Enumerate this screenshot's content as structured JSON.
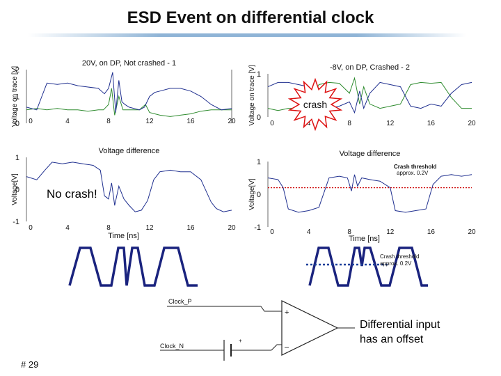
{
  "slide": {
    "title": "ESD Event on differential clock",
    "slide_number": "# 29"
  },
  "colors": {
    "trace_green": "#2e8b2e",
    "trace_blue": "#1f2f8f",
    "threshold_red": "#cc0000",
    "crash_star": "#dd1111",
    "accent_rule": "#8fb4d6"
  },
  "chart_data": [
    {
      "id": "top-left",
      "type": "line",
      "title": "20V, on DP, Not crashed - 1",
      "ylabel": "Voltage on trace [V]",
      "xlabel": "Voltage difference",
      "xlim": [
        0,
        20
      ],
      "ylim": [
        0,
        2
      ],
      "x_ticks": [
        "0",
        "4",
        "8",
        "12",
        "16",
        "20"
      ],
      "y_ticks": [
        "0",
        "1",
        "2"
      ],
      "series": [
        {
          "color": "green",
          "points": [
            [
              0,
              0.5
            ],
            [
              1,
              0.55
            ],
            [
              2,
              0.5
            ],
            [
              3,
              0.55
            ],
            [
              4,
              0.5
            ],
            [
              5,
              0.5
            ],
            [
              6,
              0.45
            ],
            [
              7,
              0.5
            ],
            [
              7.5,
              0.5
            ],
            [
              8,
              0.7
            ],
            [
              8.3,
              1.3
            ],
            [
              8.6,
              0.3
            ],
            [
              9,
              1.0
            ],
            [
              9.4,
              0.5
            ],
            [
              10,
              0.5
            ],
            [
              11,
              0.5
            ],
            [
              11.6,
              0.7
            ],
            [
              12,
              0.4
            ],
            [
              13,
              0.3
            ],
            [
              14,
              0.25
            ],
            [
              15,
              0.3
            ],
            [
              16,
              0.35
            ],
            [
              17,
              0.45
            ],
            [
              18,
              0.5
            ],
            [
              19,
              0.5
            ],
            [
              20,
              0.5
            ]
          ]
        },
        {
          "color": "blue",
          "points": [
            [
              0,
              0.6
            ],
            [
              1,
              0.5
            ],
            [
              1.5,
              1.0
            ],
            [
              2,
              1.5
            ],
            [
              3,
              1.45
            ],
            [
              4,
              1.5
            ],
            [
              5,
              1.4
            ],
            [
              6,
              1.35
            ],
            [
              7,
              1.3
            ],
            [
              7.6,
              1.1
            ],
            [
              8,
              1.3
            ],
            [
              8.4,
              1.9
            ],
            [
              8.7,
              0.4
            ],
            [
              9,
              1.6
            ],
            [
              9.3,
              0.8
            ],
            [
              9.6,
              0.7
            ],
            [
              10,
              0.6
            ],
            [
              11,
              0.5
            ],
            [
              11.5,
              0.6
            ],
            [
              12,
              1.0
            ],
            [
              12.5,
              1.15
            ],
            [
              13,
              1.2
            ],
            [
              14,
              1.3
            ],
            [
              15,
              1.3
            ],
            [
              16,
              1.2
            ],
            [
              17,
              1.0
            ],
            [
              18,
              0.7
            ],
            [
              19,
              0.5
            ],
            [
              20,
              0.55
            ]
          ]
        }
      ]
    },
    {
      "id": "top-right",
      "type": "line",
      "title": "-8V, on DP, Crashed - 2",
      "ylabel": "Voltage on trace [V]",
      "xlabel": "Voltage difference",
      "xlim": [
        0,
        20
      ],
      "ylim": [
        0,
        1
      ],
      "x_ticks": [
        "0",
        "4",
        "8",
        "12",
        "16",
        "20"
      ],
      "y_ticks": [
        "0",
        "1"
      ],
      "series": [
        {
          "color": "green",
          "points": [
            [
              0,
              0.2
            ],
            [
              1,
              0.15
            ],
            [
              2,
              0.2
            ],
            [
              3,
              0.2
            ],
            [
              4,
              0.25
            ],
            [
              5,
              0.75
            ],
            [
              6,
              0.8
            ],
            [
              7,
              0.78
            ],
            [
              8,
              0.55
            ],
            [
              8.5,
              0.9
            ],
            [
              9,
              0.3
            ],
            [
              9.4,
              0.7
            ],
            [
              10,
              0.3
            ],
            [
              11,
              0.2
            ],
            [
              12,
              0.25
            ],
            [
              13,
              0.3
            ],
            [
              14,
              0.75
            ],
            [
              15,
              0.8
            ],
            [
              16,
              0.78
            ],
            [
              17,
              0.8
            ],
            [
              18,
              0.45
            ],
            [
              19,
              0.2
            ],
            [
              20,
              0.2
            ]
          ]
        },
        {
          "color": "blue",
          "points": [
            [
              0,
              0.7
            ],
            [
              1,
              0.8
            ],
            [
              2,
              0.8
            ],
            [
              3,
              0.75
            ],
            [
              4,
              0.7
            ],
            [
              5,
              0.25
            ],
            [
              6,
              0.2
            ],
            [
              7,
              0.25
            ],
            [
              8,
              0.35
            ],
            [
              8.5,
              0.1
            ],
            [
              9,
              0.6
            ],
            [
              9.4,
              0.2
            ],
            [
              10,
              0.55
            ],
            [
              11,
              0.8
            ],
            [
              12,
              0.75
            ],
            [
              13,
              0.7
            ],
            [
              14,
              0.25
            ],
            [
              15,
              0.2
            ],
            [
              16,
              0.3
            ],
            [
              17,
              0.25
            ],
            [
              18,
              0.55
            ],
            [
              19,
              0.75
            ],
            [
              20,
              0.8
            ]
          ]
        }
      ],
      "annotation": "crash"
    },
    {
      "id": "bottom-left",
      "type": "line",
      "ylabel": "Voltage[V]",
      "xlabel": "Time [ns]",
      "xlim": [
        0,
        20
      ],
      "ylim": [
        -1,
        1
      ],
      "x_ticks": [
        "0",
        "4",
        "8",
        "12",
        "16",
        "20"
      ],
      "y_ticks": [
        "-1",
        "0",
        "1"
      ],
      "series": [
        {
          "color": "blue",
          "points": [
            [
              0,
              0.4
            ],
            [
              1,
              0.3
            ],
            [
              1.8,
              0.6
            ],
            [
              2.5,
              0.85
            ],
            [
              3.5,
              0.8
            ],
            [
              4.5,
              0.85
            ],
            [
              5.5,
              0.8
            ],
            [
              6.5,
              0.75
            ],
            [
              7.2,
              0.6
            ],
            [
              7.6,
              -0.2
            ],
            [
              8,
              -0.3
            ],
            [
              8.3,
              0.2
            ],
            [
              8.6,
              -0.5
            ],
            [
              9,
              0.1
            ],
            [
              9.5,
              -0.3
            ],
            [
              10,
              -0.5
            ],
            [
              10.6,
              -0.7
            ],
            [
              11.2,
              -0.65
            ],
            [
              11.8,
              -0.35
            ],
            [
              12.4,
              0.3
            ],
            [
              13,
              0.55
            ],
            [
              14,
              0.6
            ],
            [
              15,
              0.55
            ],
            [
              16,
              0.55
            ],
            [
              17,
              0.3
            ],
            [
              18,
              -0.4
            ],
            [
              18.5,
              -0.6
            ],
            [
              19.2,
              -0.7
            ],
            [
              20,
              -0.65
            ]
          ]
        }
      ],
      "annotation": "No crash!"
    },
    {
      "id": "bottom-right",
      "type": "line",
      "ylabel": "Voltage[V]",
      "xlabel": "Time [ns]",
      "xlim": [
        0,
        20
      ],
      "ylim": [
        -1,
        1
      ],
      "x_ticks": [
        "0",
        "4",
        "8",
        "12",
        "16",
        "20"
      ],
      "y_ticks": [
        "-1",
        "0",
        "1"
      ],
      "threshold_y": 0.2,
      "threshold_label": [
        "Crash threshold",
        "approx. 0.2V"
      ],
      "series": [
        {
          "color": "blue",
          "points": [
            [
              0,
              0.5
            ],
            [
              1,
              0.45
            ],
            [
              1.5,
              0.2
            ],
            [
              2,
              -0.45
            ],
            [
              3,
              -0.55
            ],
            [
              4,
              -0.5
            ],
            [
              5,
              -0.4
            ],
            [
              6,
              0.5
            ],
            [
              7,
              0.55
            ],
            [
              7.8,
              0.5
            ],
            [
              8.2,
              0.1
            ],
            [
              8.5,
              0.6
            ],
            [
              8.8,
              0.25
            ],
            [
              9.2,
              0.5
            ],
            [
              10,
              0.45
            ],
            [
              11,
              0.4
            ],
            [
              12,
              0.2
            ],
            [
              12.5,
              -0.5
            ],
            [
              13.5,
              -0.55
            ],
            [
              14.5,
              -0.5
            ],
            [
              15.5,
              -0.45
            ],
            [
              16.2,
              0.3
            ],
            [
              17,
              0.55
            ],
            [
              18,
              0.6
            ],
            [
              19,
              0.55
            ],
            [
              20,
              0.6
            ]
          ]
        }
      ]
    }
  ],
  "schematic": {
    "clock_p": "Clock_P",
    "clock_n": "Clock_N",
    "plus_sign": "+",
    "minus_sign": "–",
    "battery_plus": "+",
    "threshold_note": [
      "Crash threshold",
      "approx. 0.2V"
    ],
    "note": [
      "Differential input",
      "has an offset"
    ]
  }
}
